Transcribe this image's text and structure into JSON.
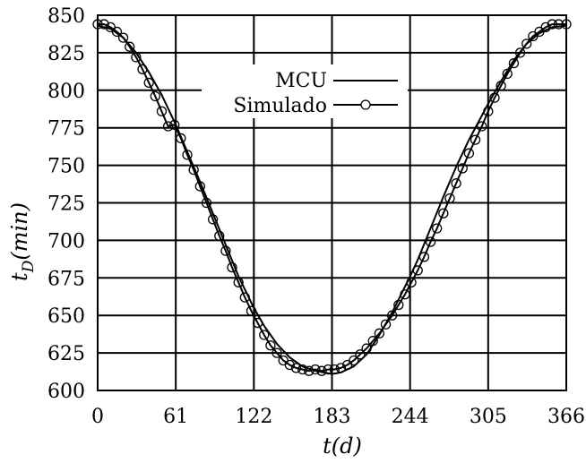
{
  "chart_data": {
    "type": "line",
    "title": "",
    "xlabel": "t(d)",
    "ylabel": "t_D (min)",
    "xlim": [
      0,
      366
    ],
    "ylim": [
      600,
      850
    ],
    "xticks": [
      0,
      61,
      122,
      183,
      244,
      305,
      366
    ],
    "yticks": [
      600,
      625,
      650,
      675,
      700,
      725,
      750,
      775,
      800,
      825,
      850
    ],
    "grid": true,
    "legend_position": "top-center",
    "series": [
      {
        "name": "MCU",
        "style": "solid-line",
        "x": [
          0,
          10,
          20,
          30,
          40,
          50,
          61,
          70,
          80,
          90,
          100,
          110,
          122,
          130,
          140,
          150,
          160,
          170,
          183,
          190,
          200,
          210,
          220,
          230,
          244,
          250,
          260,
          270,
          280,
          290,
          305,
          315,
          325,
          335,
          345,
          355,
          366
        ],
        "y": [
          843,
          841,
          835,
          825,
          812,
          797,
          777,
          759,
          739,
          718,
          697,
          676,
          655,
          643,
          631,
          622,
          616,
          613,
          611,
          612,
          616,
          624,
          637,
          652,
          676,
          687,
          708,
          729,
          749,
          767,
          791,
          806,
          820,
          831,
          838,
          842,
          843
        ]
      },
      {
        "name": "Simulado",
        "style": "line-with-open-circles",
        "x": [
          0,
          5,
          10,
          15,
          20,
          25,
          30,
          35,
          40,
          45,
          50,
          55,
          60,
          65,
          70,
          75,
          80,
          85,
          90,
          95,
          100,
          105,
          110,
          115,
          120,
          125,
          130,
          135,
          140,
          145,
          150,
          155,
          160,
          165,
          170,
          175,
          180,
          185,
          190,
          195,
          200,
          205,
          210,
          215,
          220,
          225,
          230,
          235,
          240,
          245,
          250,
          255,
          260,
          265,
          270,
          275,
          280,
          285,
          290,
          295,
          300,
          305,
          310,
          315,
          320,
          325,
          330,
          335,
          340,
          345,
          350,
          355,
          360,
          366
        ],
        "y": [
          844,
          844,
          842,
          839,
          835,
          829,
          822,
          814,
          805,
          796,
          786,
          776,
          777,
          768,
          757,
          747,
          736,
          725,
          714,
          703,
          693,
          682,
          672,
          662,
          653,
          645,
          637,
          630,
          625,
          620,
          617,
          615,
          614,
          613,
          614,
          613,
          614,
          614,
          615,
          617,
          620,
          624,
          628,
          633,
          638,
          644,
          650,
          657,
          664,
          672,
          680,
          689,
          699,
          708,
          718,
          728,
          738,
          748,
          758,
          767,
          776,
          786,
          795,
          803,
          811,
          818,
          825,
          831,
          836,
          839,
          842,
          844,
          844,
          844
        ]
      }
    ]
  }
}
